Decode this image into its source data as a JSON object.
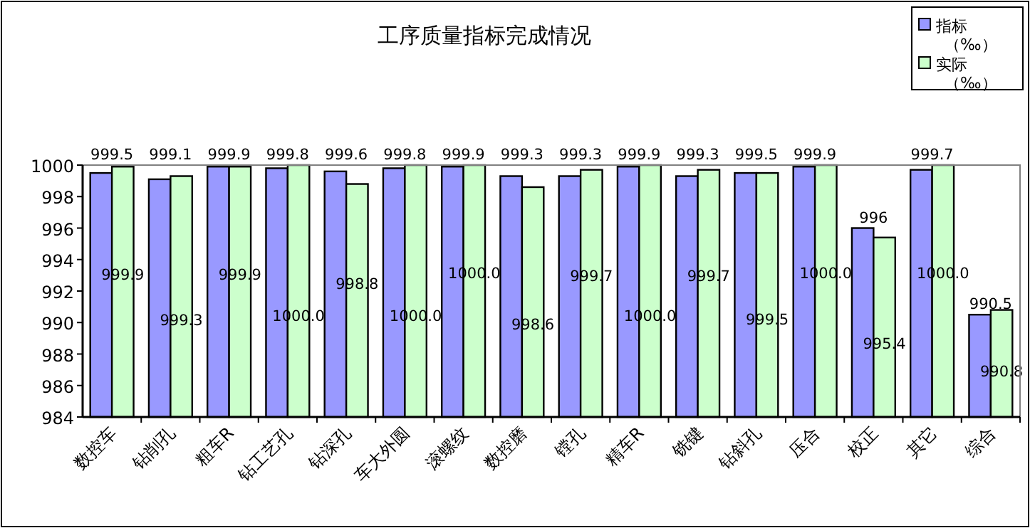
{
  "chart_data": {
    "type": "bar",
    "title": "工序质量指标完成情况",
    "categories": [
      "数控车",
      "钻削孔",
      "粗车R",
      "钻工艺孔",
      "钻深孔",
      "车大外圆",
      "滚螺纹",
      "数控磨",
      "镗孔",
      "精车R",
      "铣键",
      "钻斜孔",
      "压合",
      "校正",
      "其它",
      "综合"
    ],
    "series": [
      {
        "name": "指标（‰）",
        "color": "#9999ff",
        "values": [
          999.5,
          999.1,
          999.9,
          999.8,
          999.6,
          999.8,
          999.9,
          999.3,
          999.3,
          999.9,
          999.3,
          999.5,
          999.9,
          996,
          999.7,
          990.5
        ],
        "value_labels": [
          "999.5",
          "999.1",
          "999.9",
          "999.8",
          "999.6",
          "999.8",
          "999.9",
          "999.3",
          "999.3",
          "999.9",
          "999.3",
          "999.5",
          "999.9",
          "996",
          "999.7",
          "990.5"
        ]
      },
      {
        "name": "实际（‰）",
        "color": "#ccffcc",
        "values": [
          999.9,
          999.3,
          999.9,
          1000.0,
          998.8,
          1000.0,
          1000.0,
          998.6,
          999.7,
          1000.0,
          999.7,
          999.5,
          1000.0,
          995.4,
          1000.0,
          990.8
        ],
        "value_labels": [
          "999.9",
          "999.3",
          "999.9",
          "1000.0",
          "998.8",
          "1000.0",
          "1000.0",
          "998.6",
          "999.7",
          "1000.0",
          "999.7",
          "999.5",
          "1000.0",
          "995.4",
          "1000.0",
          "990.8"
        ]
      }
    ],
    "ylim": [
      984,
      1000
    ],
    "yticks": [
      984,
      986,
      988,
      990,
      992,
      994,
      996,
      998,
      1000
    ],
    "legend": "top right",
    "grid": false
  }
}
